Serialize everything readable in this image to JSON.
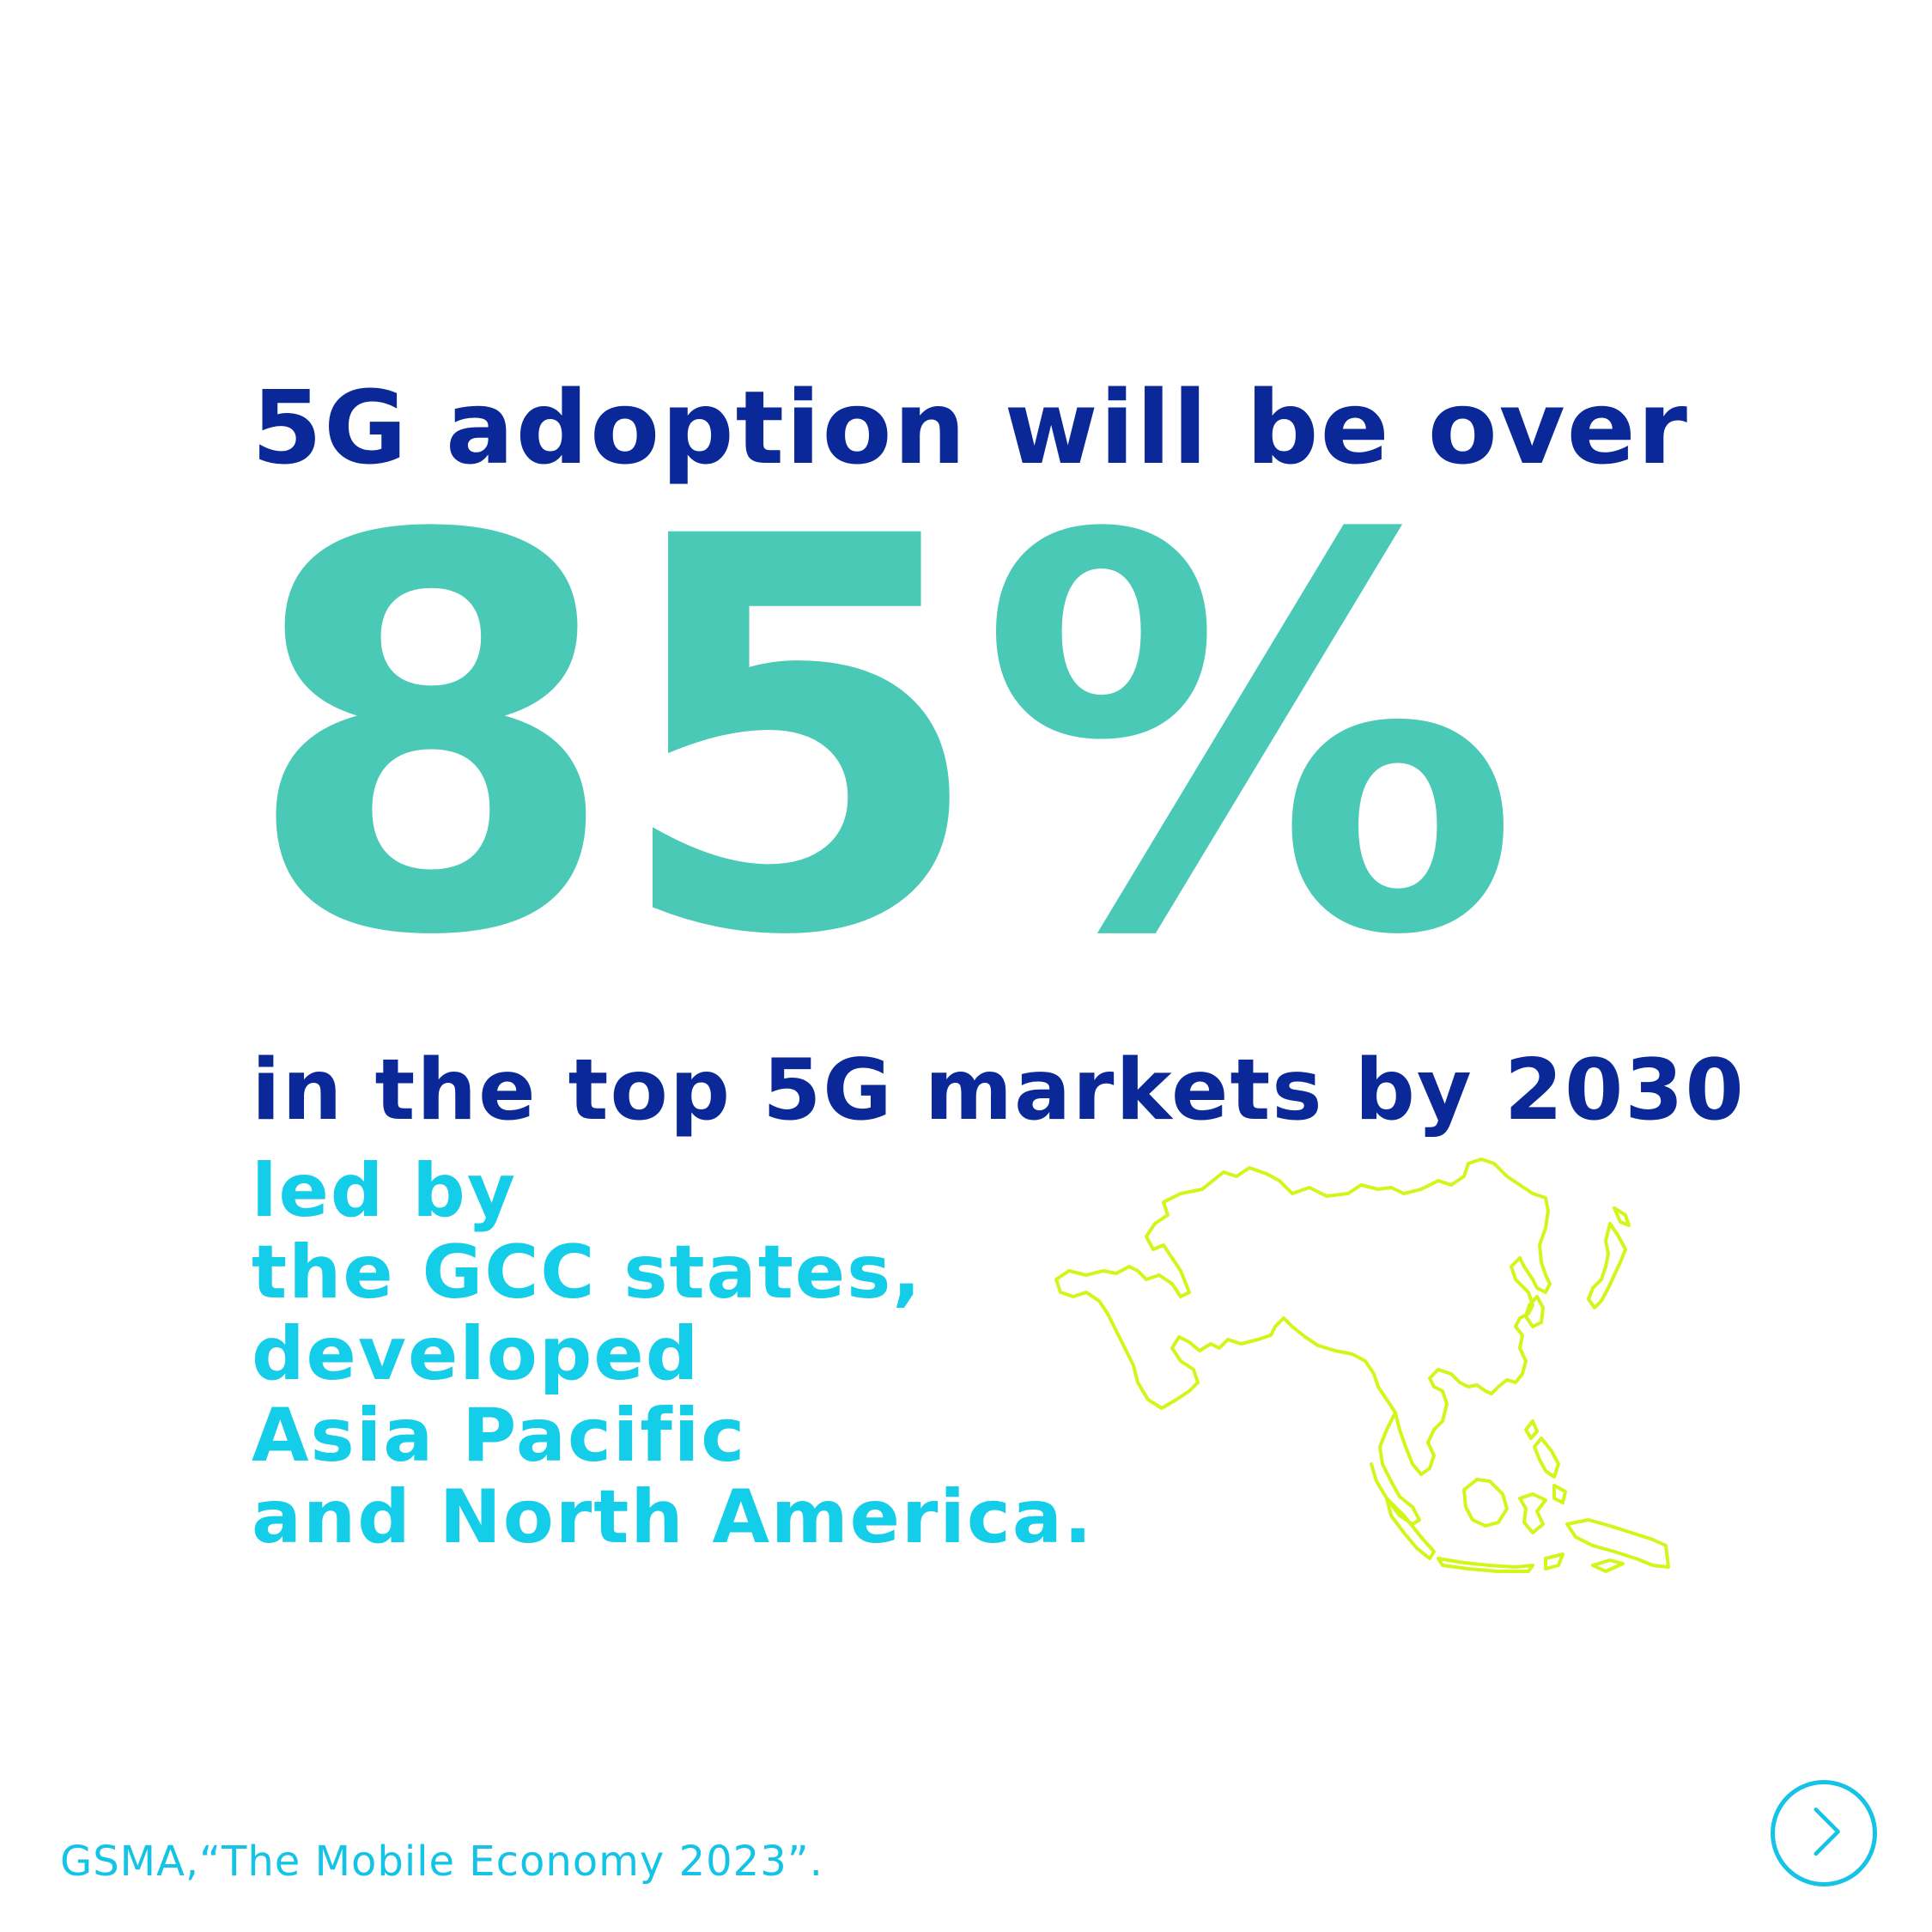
{
  "headline": "5G adoption will be over",
  "stat": "85%",
  "subline": "in the top 5G markets by 2030",
  "leaders": [
    "led by",
    "the GCC states,",
    "developed",
    "Asia Pacific",
    "and North America."
  ],
  "source": "GSMA,“The Mobile Economy 2023”.",
  "icons": {
    "map": "asia-pacific-map-icon",
    "next": "chevron-right-icon"
  },
  "colors": {
    "headline": "#0a2897",
    "stat": "#4ac9b7",
    "leaders": "#14cde8",
    "map_outline": "#d4f51a",
    "source": "#14c3e6",
    "background": "#ffffff"
  }
}
